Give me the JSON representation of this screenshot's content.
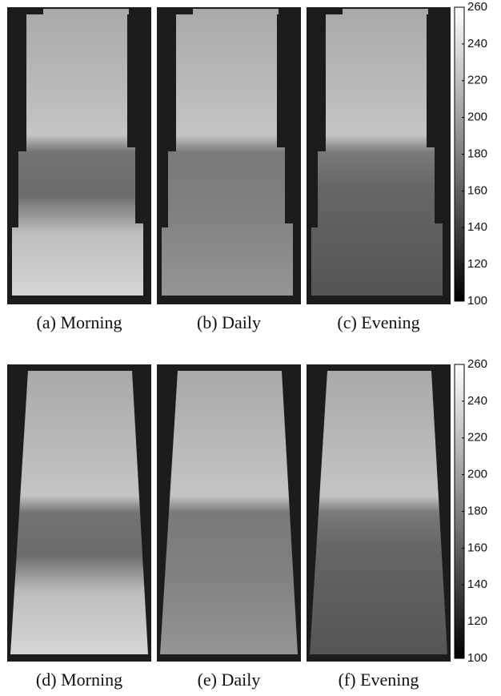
{
  "figure": {
    "panels": [
      {
        "caption": "(a) Morning"
      },
      {
        "caption": "(b) Daily"
      },
      {
        "caption": "(c) Evening"
      },
      {
        "caption": "(d) Morning"
      },
      {
        "caption": "(e) Daily"
      },
      {
        "caption": "(f) Evening"
      }
    ],
    "colorbars": [
      {
        "lim": [
          100,
          260
        ],
        "ticks": [
          100,
          120,
          140,
          160,
          180,
          200,
          220,
          240,
          260
        ]
      },
      {
        "lim": [
          100,
          260
        ],
        "ticks": [
          100,
          120,
          140,
          160,
          180,
          200,
          220,
          240,
          260
        ]
      }
    ]
  }
}
